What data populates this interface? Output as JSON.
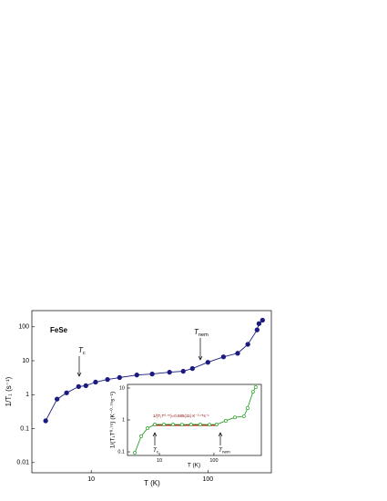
{
  "chart_data": [
    {
      "type": "line",
      "x_label": "T (K)",
      "y_label": "1/T₁ (s⁻¹)",
      "log_x": true,
      "log_y": true,
      "xlim": [
        3.1,
        350
      ],
      "ylim": [
        0.005,
        300
      ],
      "xticks": [
        10,
        100
      ],
      "yticks": [
        0.01,
        0.1,
        1,
        10,
        100
      ],
      "annotations": [
        {
          "main": "FeSe"
        },
        {
          "main": "T",
          "sub": "c"
        },
        {
          "main": "T",
          "sub": "nem"
        }
      ],
      "series": [
        {
          "color": "#1a1a80",
          "x": [
            4.07,
            5.1,
            6.15,
            7.8,
            9.0,
            10.9,
            13.8,
            17.5,
            24.6,
            33.3,
            46.9,
            61.5,
            73.7,
            100,
            136,
            180,
            220,
            264,
            274,
            294
          ],
          "values": [
            0.17,
            0.74,
            1.13,
            1.73,
            1.84,
            2.35,
            2.8,
            3.2,
            3.8,
            4.07,
            4.6,
            4.9,
            5.9,
            9.0,
            13.0,
            16.6,
            30.5,
            81,
            124,
            157
          ]
        }
      ]
    },
    {
      "type": "line",
      "x_label": "T (K)",
      "y_label": "1/(T₁T⁰·⁷⁵) (K⁻⁰·⁷⁵s⁻¹)",
      "log_x": true,
      "log_y": true,
      "xlim": [
        2.6,
        740
      ],
      "ylim": [
        0.077,
        13
      ],
      "xticks": [
        10,
        100
      ],
      "yticks": [
        0.1,
        1,
        10
      ],
      "annotations": [
        {
          "main": "T",
          "sub": "c"
        },
        {
          "main": "T",
          "sub": "nem"
        }
      ],
      "fit": {
        "value": 0.685,
        "x": [
          7.5,
          112
        ],
        "color": "#cc0000",
        "label": "1/(T₁T⁰·⁷⁵)=0.685(11) K⁻⁰·⁷⁵s⁻¹"
      },
      "series": [
        {
          "color": "#2ca02c",
          "x": [
            3.55,
            4.64,
            6.07,
            8.25,
            12.1,
            17.8,
            26,
            38,
            56,
            83,
            112,
            165,
            242,
            355,
            414,
            520,
            583
          ],
          "values": [
            0.094,
            0.31,
            0.55,
            0.72,
            0.72,
            0.72,
            0.71,
            0.72,
            0.72,
            0.71,
            0.72,
            0.94,
            1.2,
            1.3,
            2.35,
            7.6,
            10.7
          ]
        }
      ]
    }
  ]
}
